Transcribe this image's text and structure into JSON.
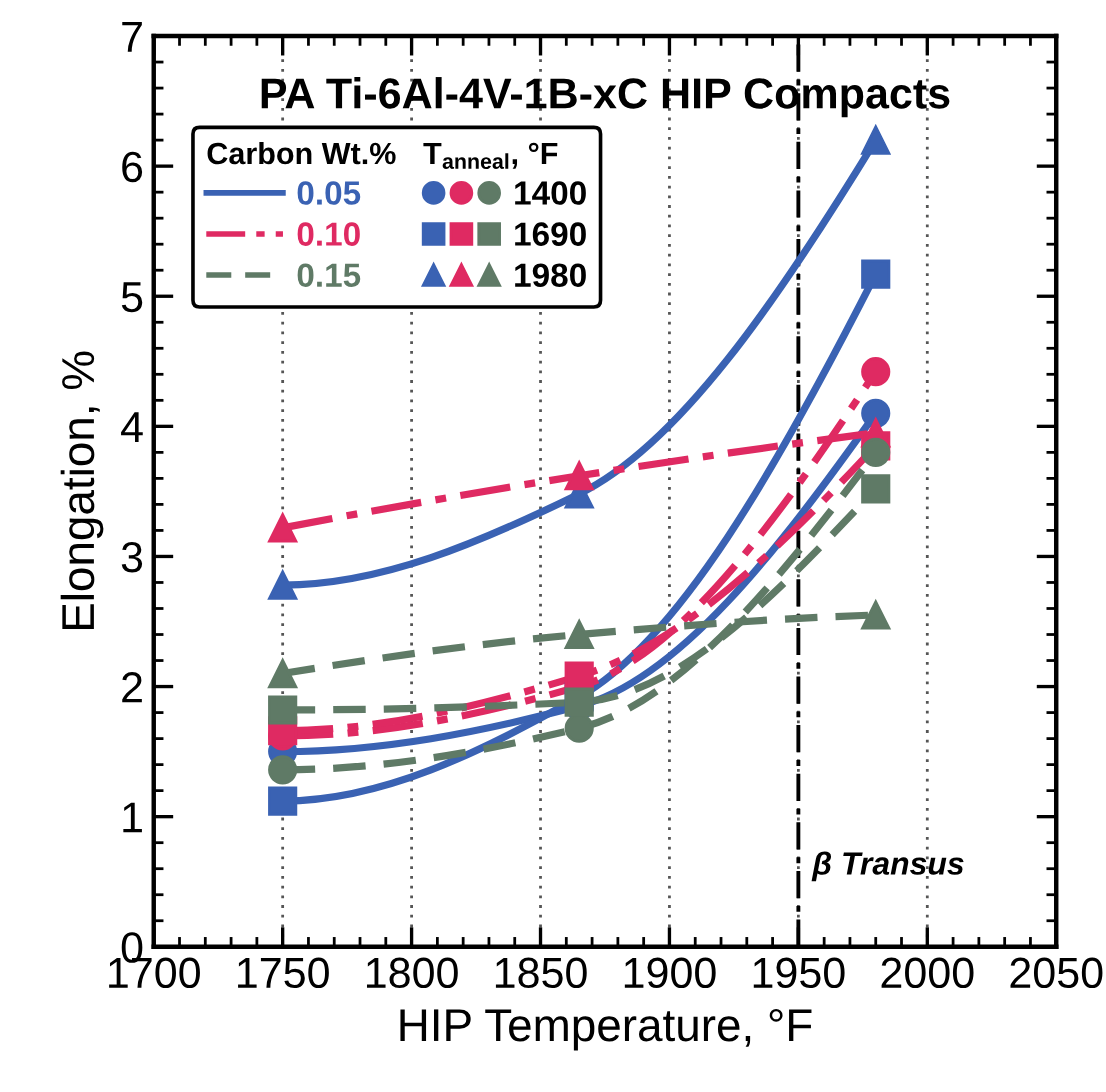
{
  "chart_data": {
    "type": "line",
    "title": "PA Ti-6Al-4V-1B-xC HIP Compacts",
    "xlabel": "HIP Temperature, °F",
    "ylabel": "Elongation, %",
    "legend_title": "Carbon Wt.%",
    "annotations": [
      "T$_{anneal}$, °F",
      "1400",
      "1690",
      "1980"
    ],
    "x": [
      1750,
      1865,
      1980
    ],
    "xlim": [
      1700,
      2050
    ],
    "xticks": [
      1700,
      1750,
      1800,
      1850,
      1900,
      1950,
      2000,
      2050
    ],
    "ylim": [
      0,
      7
    ],
    "yticks": [
      0,
      1,
      2,
      3,
      4,
      5,
      6,
      7
    ],
    "grid": "x",
    "legend": "top left",
    "ref_lines": [
      {
        "axis": "x",
        "value": 1950,
        "label": "β Transus",
        "color": "#000000",
        "line_style": "dashdot"
      }
    ],
    "series": [
      {
        "name": "0.05",
        "color": "#3a62b3",
        "marker": "circle",
        "line_style": "solid",
        "values": [
          1.5,
          1.85,
          4.1
        ]
      },
      {
        "color": "#3a62b3",
        "marker": "square",
        "line_style": "solid",
        "values": [
          1.12,
          1.92,
          5.17
        ]
      },
      {
        "color": "#3a62b3",
        "marker": "triangle",
        "line_style": "solid",
        "values": [
          2.78,
          3.48,
          6.2
        ]
      },
      {
        "name": "0.10",
        "color": "#df2a62",
        "marker": "circle",
        "line_style": "dashdot",
        "values": [
          1.62,
          2.0,
          4.42
        ]
      },
      {
        "color": "#df2a62",
        "marker": "square",
        "line_style": "dashdot",
        "values": [
          1.66,
          2.08,
          3.85
        ]
      },
      {
        "color": "#df2a62",
        "marker": "triangle",
        "line_style": "dashdot",
        "values": [
          3.22,
          3.62,
          3.95
        ]
      },
      {
        "name": "0.15",
        "color": "#5f7a66",
        "marker": "circle",
        "line_style": "dashed",
        "values": [
          1.36,
          1.68,
          3.8
        ]
      },
      {
        "color": "#5f7a66",
        "marker": "square",
        "line_style": "dashed",
        "values": [
          1.82,
          1.88,
          3.52
        ]
      },
      {
        "color": "#5f7a66",
        "marker": "triangle",
        "line_style": "dashed",
        "values": [
          2.1,
          2.4,
          2.55
        ]
      }
    ]
  }
}
